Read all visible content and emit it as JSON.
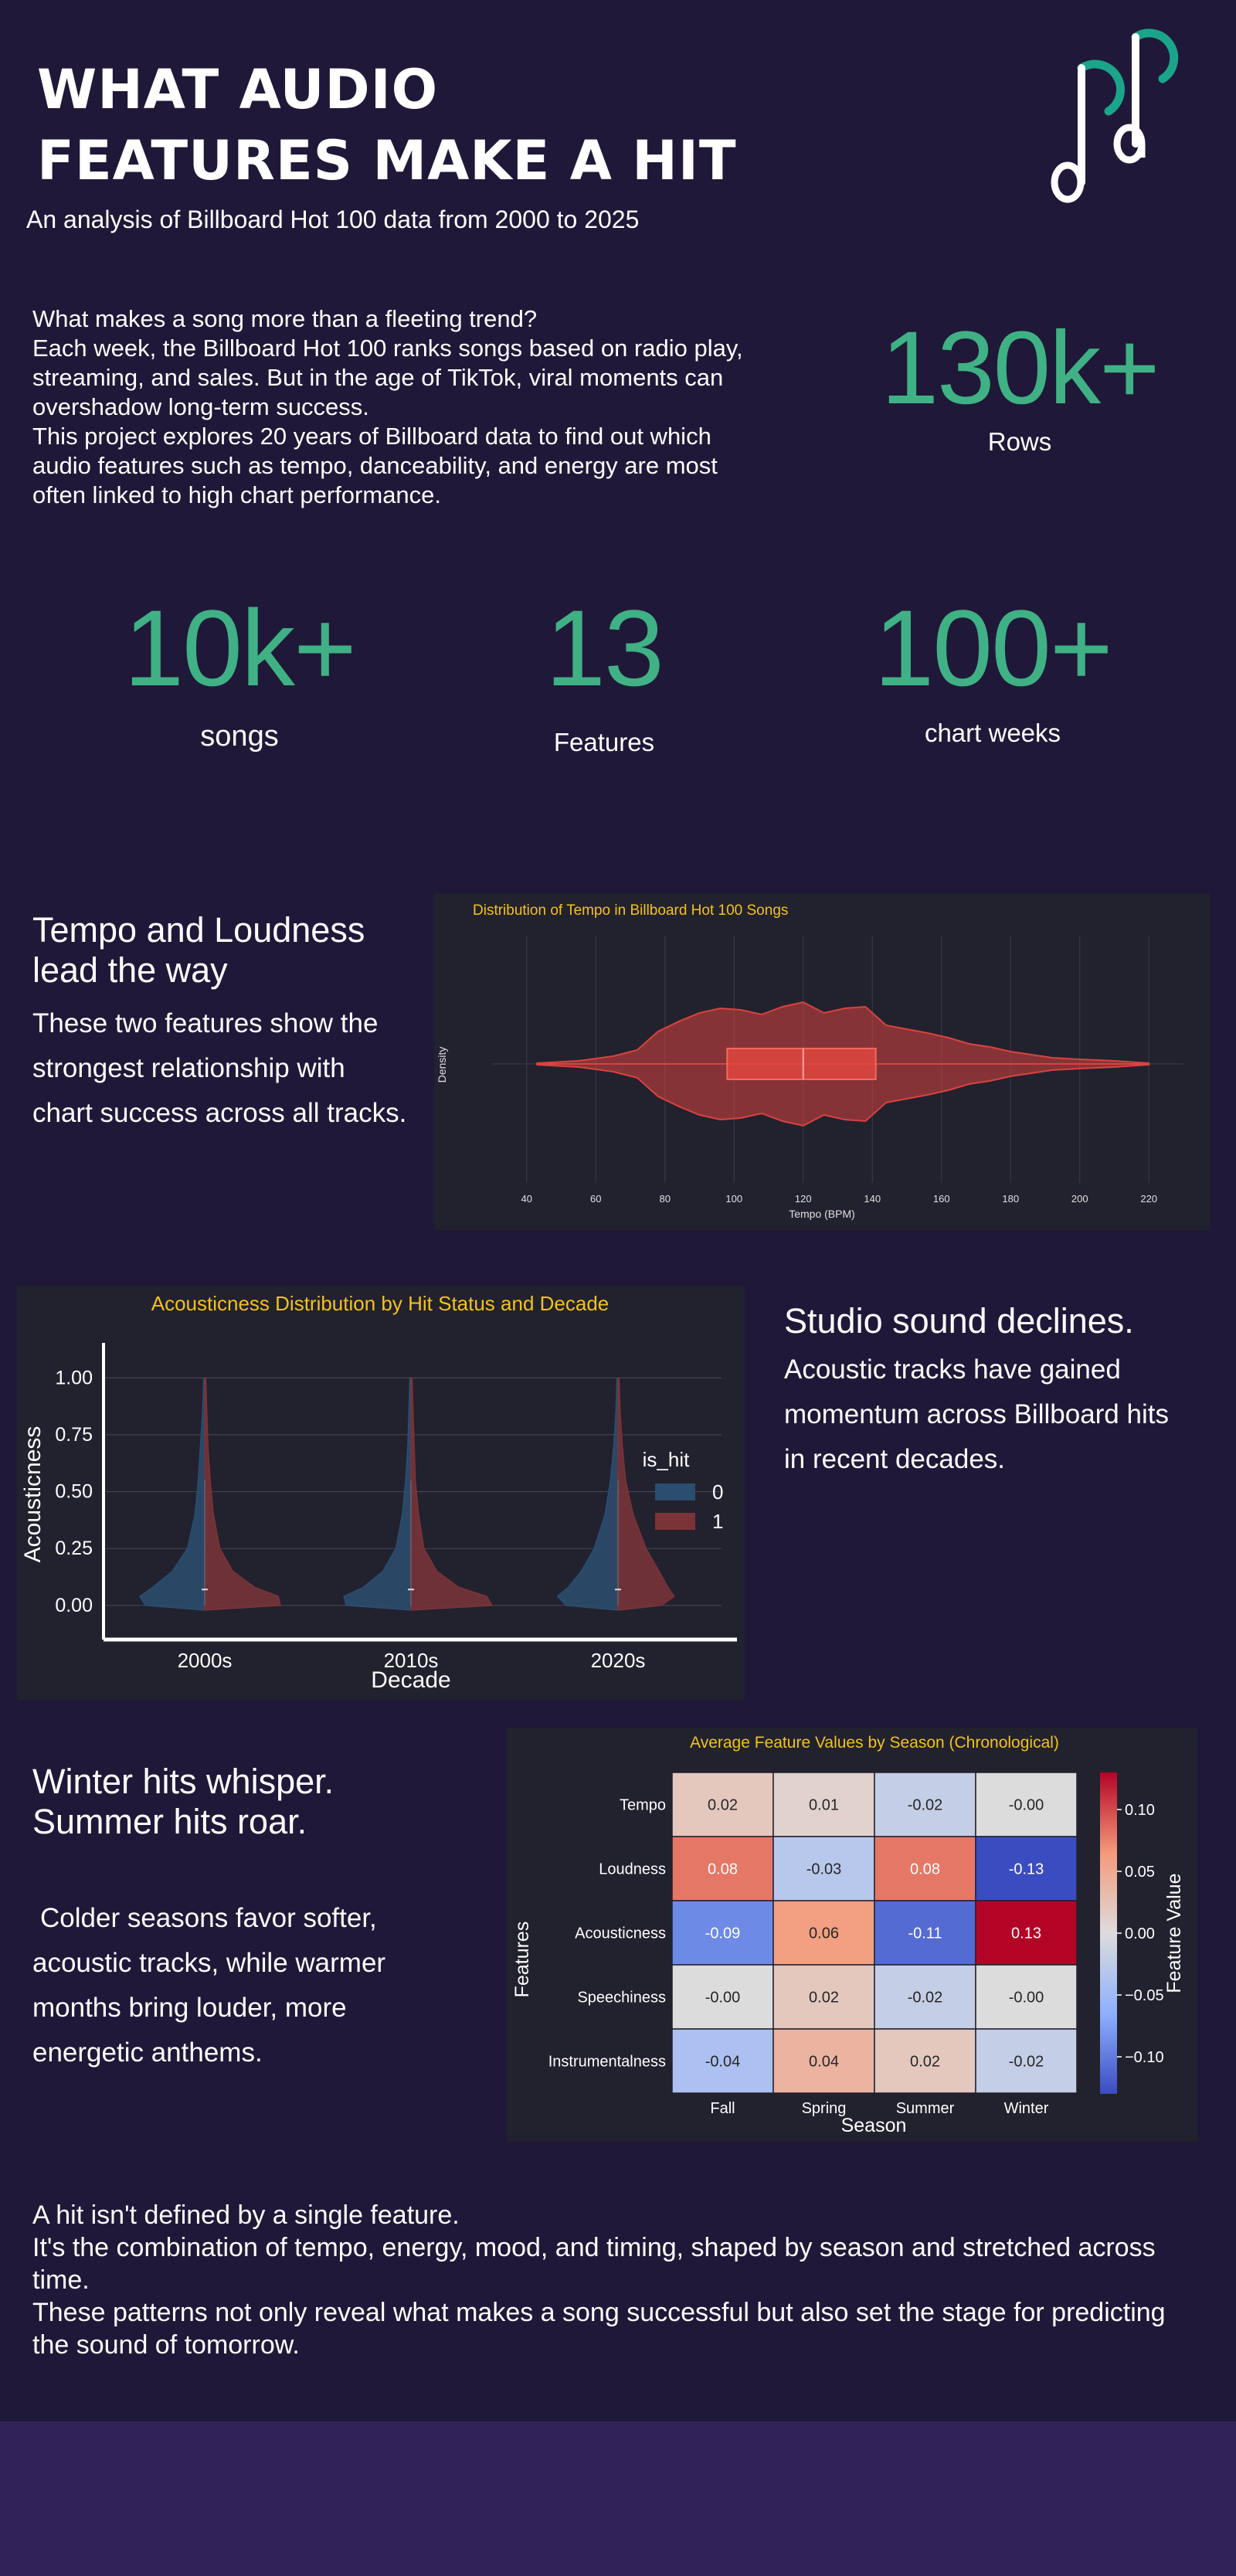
{
  "header": {
    "title_line1": "WHAT AUDIO",
    "title_line2": "FEATURES MAKE A HIT",
    "subtitle": "An analysis of Billboard Hot 100 data from 2000 to 2025",
    "logo_icon": "music-notes-icon",
    "logo_colors": {
      "note": "#ffffff",
      "accent": "#1aa58a"
    }
  },
  "intro": {
    "lines": [
      "What makes a song more than a fleeting trend?",
      "Each week, the Billboard Hot 100 ranks songs based on radio play, streaming, and sales. But in the age of TikTok, viral moments can overshadow long-term success.",
      "This project explores 20 years of Billboard data to find out which audio features such as tempo, danceability, and energy are most often linked to high chart performance."
    ]
  },
  "stats": {
    "rows": {
      "value": "130k+",
      "label": "Rows"
    },
    "songs": {
      "value": "10k+",
      "label": "songs"
    },
    "features": {
      "value": "13",
      "label": "Features"
    },
    "weeks": {
      "value": "100+",
      "label": "chart weeks"
    },
    "accent": "#3fb185"
  },
  "section_tempo": {
    "heading": "Tempo and Loudness lead the way",
    "body": "These two features show the strongest relationship with chart success across all tracks."
  },
  "section_acoustic": {
    "heading": "Studio sound declines.",
    "body": "Acoustic tracks have gained momentum across Billboard hits in recent decades."
  },
  "section_season": {
    "heading": "Winter hits whisper. Summer hits roar.",
    "body": "Colder seasons favor softer, acoustic tracks, while warmer months bring louder, more energetic anthems."
  },
  "closing": {
    "lines": [
      "A hit isn't defined by a single feature.",
      "It's the combination of tempo, energy, mood, and timing, shaped by season and stretched across time.",
      "These patterns not only reveal what makes a song successful but also set the stage for predicting the sound of tomorrow."
    ]
  },
  "chart_data": [
    {
      "type": "violin",
      "title": "Distribution of Tempo in Billboard Hot 100 Songs",
      "xlabel": "Tempo (BPM)",
      "ylabel": "Density",
      "xlim": [
        30,
        230
      ],
      "xticks": [
        40,
        60,
        80,
        100,
        120,
        140,
        160,
        180,
        200,
        220
      ],
      "orientation": "horizontal",
      "density_x": [
        43,
        55,
        65,
        72,
        78,
        84,
        90,
        96,
        102,
        108,
        114,
        120,
        126,
        132,
        138,
        144,
        150,
        156,
        162,
        168,
        174,
        180,
        186,
        192,
        200,
        210,
        220
      ],
      "density_y": [
        0.01,
        0.04,
        0.1,
        0.18,
        0.42,
        0.55,
        0.66,
        0.72,
        0.7,
        0.64,
        0.74,
        0.8,
        0.66,
        0.72,
        0.74,
        0.5,
        0.45,
        0.4,
        0.34,
        0.26,
        0.22,
        0.16,
        0.12,
        0.08,
        0.06,
        0.04,
        0.01
      ],
      "box": {
        "q1": 98,
        "median": 120,
        "q3": 141
      },
      "color": "#d9433f",
      "title_color": "#f2c318",
      "grid": true
    },
    {
      "type": "split_violin",
      "title": "Acousticness Distribution by Hit Status and Decade",
      "xlabel": "Decade",
      "ylabel": "Acousticness",
      "categories": [
        "2000s",
        "2010s",
        "2020s"
      ],
      "ylim": [
        -0.15,
        1.12
      ],
      "yticks": [
        0.0,
        0.25,
        0.5,
        0.75,
        1.0
      ],
      "ytick_labels": [
        "0.00",
        "0.25",
        "0.50",
        "0.75",
        "1.00"
      ],
      "legend_title": "is_hit",
      "legend_placement": "right",
      "grid": true,
      "series": [
        {
          "name": "0",
          "color": "#2b4d70",
          "groups": [
            {
              "y": [
                -0.02,
                0.0,
                0.04,
                0.08,
                0.15,
                0.25,
                0.4,
                0.55,
                0.7,
                0.85,
                1.0
              ],
              "w": [
                0.02,
                0.55,
                0.6,
                0.48,
                0.3,
                0.16,
                0.09,
                0.06,
                0.04,
                0.02,
                0.01
              ]
            },
            {
              "y": [
                -0.02,
                0.0,
                0.04,
                0.08,
                0.15,
                0.25,
                0.4,
                0.55,
                0.7,
                0.85,
                1.0
              ],
              "w": [
                0.02,
                0.6,
                0.62,
                0.44,
                0.26,
                0.14,
                0.08,
                0.05,
                0.03,
                0.02,
                0.01
              ]
            },
            {
              "y": [
                -0.02,
                0.0,
                0.04,
                0.08,
                0.15,
                0.25,
                0.4,
                0.55,
                0.7,
                0.85,
                1.0
              ],
              "w": [
                0.02,
                0.48,
                0.56,
                0.46,
                0.34,
                0.22,
                0.12,
                0.07,
                0.04,
                0.02,
                0.01
              ]
            }
          ]
        },
        {
          "name": "1",
          "color": "#7a3438",
          "groups": [
            {
              "y": [
                -0.02,
                0.0,
                0.04,
                0.08,
                0.15,
                0.25,
                0.4,
                0.55,
                0.7,
                0.85,
                1.0
              ],
              "w": [
                0.02,
                0.7,
                0.68,
                0.46,
                0.26,
                0.14,
                0.08,
                0.05,
                0.03,
                0.02,
                0.01
              ]
            },
            {
              "y": [
                -0.02,
                0.0,
                0.04,
                0.08,
                0.15,
                0.25,
                0.4,
                0.55,
                0.7,
                0.85,
                1.0
              ],
              "w": [
                0.02,
                0.75,
                0.7,
                0.44,
                0.24,
                0.12,
                0.07,
                0.04,
                0.03,
                0.02,
                0.01
              ]
            },
            {
              "y": [
                -0.02,
                0.0,
                0.04,
                0.08,
                0.15,
                0.25,
                0.4,
                0.55,
                0.7,
                0.85,
                1.0
              ],
              "w": [
                0.02,
                0.4,
                0.52,
                0.46,
                0.38,
                0.26,
                0.14,
                0.07,
                0.04,
                0.02,
                0.01
              ]
            }
          ]
        }
      ],
      "title_color": "#f2c318"
    },
    {
      "type": "heatmap",
      "title": "Average Feature Values by Season (Chronological)",
      "xlabel": "Season",
      "ylabel": "Features",
      "x": [
        "Fall",
        "Spring",
        "Summer",
        "Winter"
      ],
      "y": [
        "Tempo",
        "Loudness",
        "Acousticness",
        "Speechiness",
        "Instrumentalness"
      ],
      "values": [
        [
          0.02,
          0.01,
          -0.02,
          -0.0
        ],
        [
          0.08,
          -0.03,
          0.08,
          -0.13
        ],
        [
          -0.09,
          0.06,
          -0.11,
          0.13
        ],
        [
          -0.0,
          0.02,
          -0.02,
          -0.0
        ],
        [
          -0.04,
          0.04,
          0.02,
          -0.02
        ]
      ],
      "labels": [
        [
          "0.02",
          "0.01",
          "-0.02",
          "-0.00"
        ],
        [
          "0.08",
          "-0.03",
          "0.08",
          "-0.13"
        ],
        [
          "-0.09",
          "0.06",
          "-0.11",
          "0.13"
        ],
        [
          "-0.00",
          "0.02",
          "-0.02",
          "-0.00"
        ],
        [
          "-0.04",
          "0.04",
          "0.02",
          "-0.02"
        ]
      ],
      "colorbar_label": "Feature Value",
      "colorbar_range": [
        -0.13,
        0.13
      ],
      "colorbar_ticks": [
        0.1,
        0.05,
        0.0,
        -0.05,
        -0.1
      ],
      "colorbar_tick_labels": [
        "0.10",
        "0.05",
        "0.00",
        "−0.05",
        "−0.10"
      ],
      "colormap": "coolwarm",
      "title_color": "#f2c318"
    }
  ]
}
